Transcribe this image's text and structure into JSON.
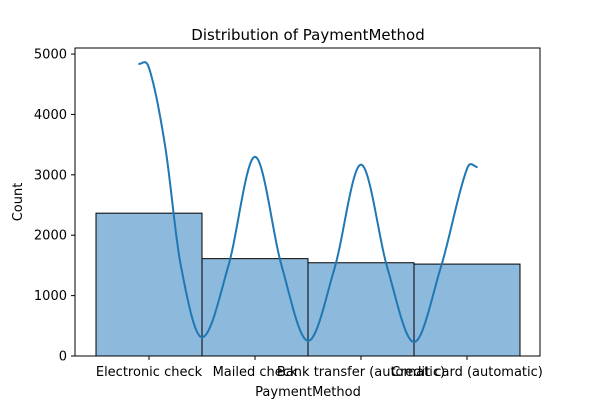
{
  "chart_data": {
    "type": "bar",
    "title": "Distribution of PaymentMethod",
    "xlabel": "PaymentMethod",
    "ylabel": "Count",
    "categories": [
      "Electronic check",
      "Mailed check",
      "Bank transfer (automatic)",
      "Credit card (automatic)"
    ],
    "values": [
      2365,
      1612,
      1544,
      1522
    ],
    "ylim": [
      0,
      5100
    ],
    "yticks": [
      0,
      1000,
      2000,
      3000,
      4000,
      5000
    ],
    "kde": {
      "x": [
        -0.1,
        0.0,
        0.15,
        0.3,
        0.5,
        0.75,
        1.0,
        1.25,
        1.5,
        1.75,
        2.0,
        2.25,
        2.5,
        2.75,
        3.0,
        3.1
      ],
      "y": [
        4840,
        4770,
        3500,
        1500,
        310,
        1500,
        3300,
        1500,
        250,
        1450,
        3170,
        1450,
        230,
        1450,
        3100,
        3130
      ]
    },
    "grid": false,
    "colors": {
      "bar_fill": "#8cb9dc",
      "bar_edge": "#000000",
      "kde_line": "#1f77b4"
    }
  }
}
